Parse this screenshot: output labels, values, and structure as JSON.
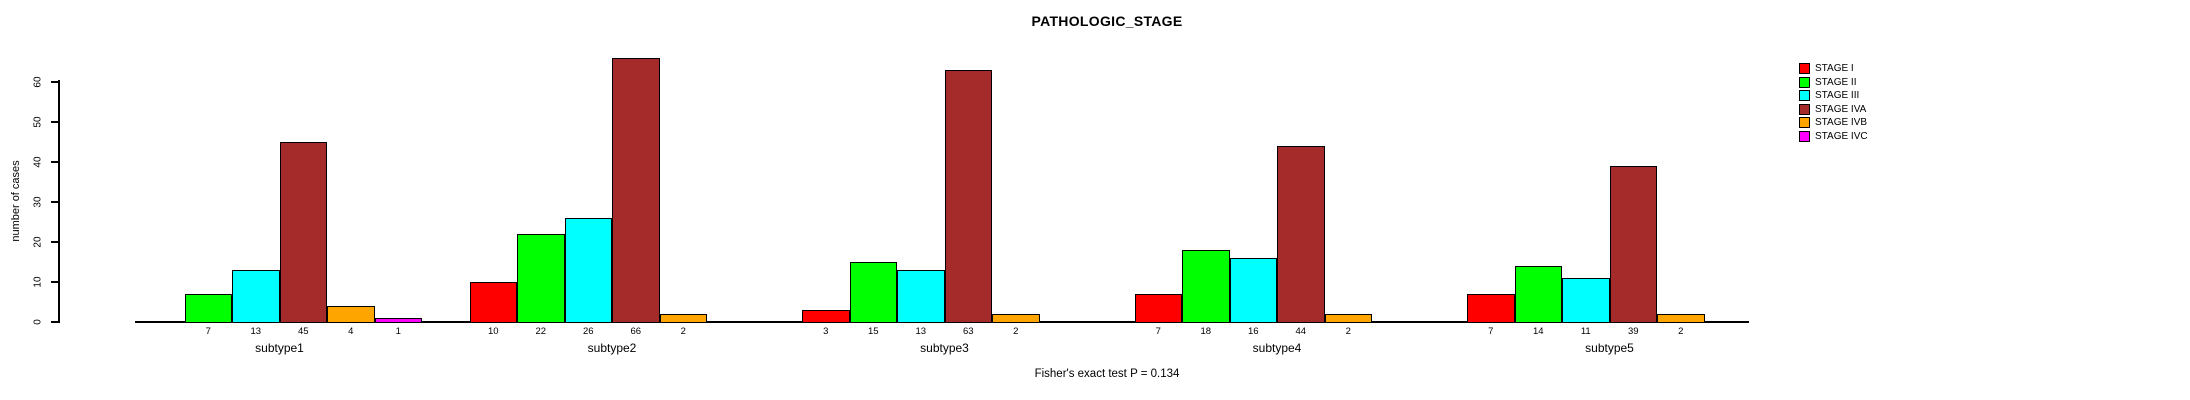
{
  "title": "PATHOLOGIC_STAGE",
  "footer_note": "Fisher's exact test P = 0.134",
  "ylabel": "number of cases",
  "legend_items": [
    {
      "label": "STAGE I",
      "color": "#FF0000"
    },
    {
      "label": "STAGE II",
      "color": "#00FF00"
    },
    {
      "label": "STAGE III",
      "color": "#00FFFF"
    },
    {
      "label": "STAGE IVA",
      "color": "#A52A2A"
    },
    {
      "label": "STAGE IVB",
      "color": "#FFA500"
    },
    {
      "label": "STAGE IVC",
      "color": "#FF00FF"
    }
  ],
  "chart_data": {
    "type": "bar",
    "grouped": true,
    "title": "PATHOLOGIC_STAGE",
    "xlabel": "",
    "ylabel": "number of cases",
    "ylim": [
      0,
      66
    ],
    "yticks": [
      0,
      10,
      20,
      30,
      40,
      50,
      60
    ],
    "grid": false,
    "legend_position": "right",
    "bar_count_labels": "non-zero counts printed under each bar",
    "categories": [
      "subtype1",
      "subtype2",
      "subtype3",
      "subtype4",
      "subtype5"
    ],
    "series": [
      {
        "name": "STAGE I",
        "color": "#FF0000",
        "values": [
          0,
          10,
          3,
          7,
          7
        ]
      },
      {
        "name": "STAGE II",
        "color": "#00FF00",
        "values": [
          7,
          22,
          15,
          18,
          14
        ]
      },
      {
        "name": "STAGE III",
        "color": "#00FFFF",
        "values": [
          13,
          26,
          13,
          16,
          11
        ]
      },
      {
        "name": "STAGE IVA",
        "color": "#A52A2A",
        "values": [
          45,
          66,
          63,
          44,
          39
        ]
      },
      {
        "name": "STAGE IVB",
        "color": "#FFA500",
        "values": [
          4,
          2,
          2,
          2,
          2
        ]
      },
      {
        "name": "STAGE IVC",
        "color": "#FF00FF",
        "values": [
          1,
          0,
          0,
          0,
          0
        ]
      }
    ]
  }
}
